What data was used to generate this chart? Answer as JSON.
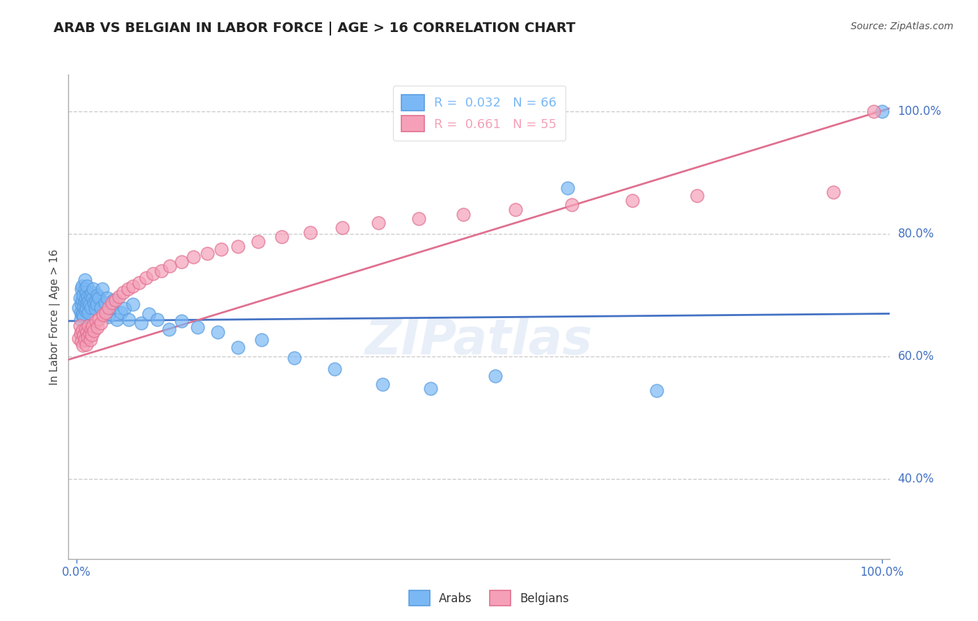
{
  "title": "ARAB VS BELGIAN IN LABOR FORCE | AGE > 16 CORRELATION CHART",
  "source_text": "Source: ZipAtlas.com",
  "ylabel": "In Labor Force | Age > 16",
  "xlim": [
    0.0,
    1.0
  ],
  "ylim_min": 0.27,
  "ylim_max": 1.06,
  "xtick_labels": [
    "0.0%",
    "100.0%"
  ],
  "ytick_labels": [
    "40.0%",
    "60.0%",
    "80.0%",
    "100.0%"
  ],
  "ytick_positions": [
    0.4,
    0.6,
    0.8,
    1.0
  ],
  "grid_color": "#cccccc",
  "background_color": "#ffffff",
  "arab_color": "#7ab8f5",
  "arab_edge_color": "#5a9de0",
  "belgian_color": "#f5a0b8",
  "belgian_edge_color": "#e07090",
  "arab_R": 0.032,
  "arab_N": 66,
  "belgian_R": 0.661,
  "belgian_N": 55,
  "arab_line_color": "#4472c4",
  "belgian_line_color": "#e07090",
  "arab_x": [
    0.003,
    0.004,
    0.005,
    0.005,
    0.006,
    0.006,
    0.007,
    0.007,
    0.007,
    0.008,
    0.008,
    0.009,
    0.009,
    0.01,
    0.01,
    0.01,
    0.011,
    0.011,
    0.012,
    0.012,
    0.013,
    0.013,
    0.014,
    0.015,
    0.015,
    0.016,
    0.017,
    0.018,
    0.019,
    0.02,
    0.021,
    0.022,
    0.023,
    0.024,
    0.025,
    0.026,
    0.028,
    0.03,
    0.032,
    0.035,
    0.038,
    0.04,
    0.043,
    0.046,
    0.05,
    0.055,
    0.06,
    0.065,
    0.07,
    0.08,
    0.09,
    0.1,
    0.115,
    0.13,
    0.15,
    0.175,
    0.2,
    0.23,
    0.27,
    0.32,
    0.38,
    0.44,
    0.52,
    0.61,
    0.72,
    1.0
  ],
  "arab_y": [
    0.68,
    0.695,
    0.672,
    0.66,
    0.685,
    0.71,
    0.668,
    0.692,
    0.715,
    0.67,
    0.7,
    0.682,
    0.665,
    0.69,
    0.71,
    0.725,
    0.675,
    0.695,
    0.68,
    0.705,
    0.715,
    0.688,
    0.698,
    0.672,
    0.69,
    0.685,
    0.7,
    0.68,
    0.705,
    0.695,
    0.71,
    0.688,
    0.678,
    0.692,
    0.685,
    0.7,
    0.695,
    0.68,
    0.71,
    0.688,
    0.695,
    0.665,
    0.68,
    0.692,
    0.66,
    0.672,
    0.678,
    0.66,
    0.685,
    0.655,
    0.67,
    0.66,
    0.645,
    0.658,
    0.648,
    0.64,
    0.615,
    0.628,
    0.598,
    0.58,
    0.555,
    0.548,
    0.568,
    0.875,
    0.545,
    1.0
  ],
  "belgian_x": [
    0.003,
    0.004,
    0.005,
    0.006,
    0.007,
    0.008,
    0.009,
    0.01,
    0.011,
    0.012,
    0.013,
    0.014,
    0.015,
    0.016,
    0.017,
    0.018,
    0.019,
    0.02,
    0.022,
    0.024,
    0.026,
    0.028,
    0.03,
    0.033,
    0.036,
    0.04,
    0.044,
    0.048,
    0.053,
    0.058,
    0.064,
    0.07,
    0.078,
    0.086,
    0.095,
    0.105,
    0.116,
    0.13,
    0.145,
    0.162,
    0.18,
    0.2,
    0.225,
    0.255,
    0.29,
    0.33,
    0.375,
    0.425,
    0.48,
    0.545,
    0.615,
    0.69,
    0.77,
    0.94,
    0.99
  ],
  "belgian_y": [
    0.63,
    0.65,
    0.638,
    0.625,
    0.642,
    0.618,
    0.635,
    0.628,
    0.645,
    0.62,
    0.64,
    0.632,
    0.65,
    0.638,
    0.628,
    0.645,
    0.635,
    0.65,
    0.642,
    0.658,
    0.648,
    0.662,
    0.655,
    0.668,
    0.672,
    0.68,
    0.688,
    0.692,
    0.698,
    0.705,
    0.71,
    0.715,
    0.72,
    0.728,
    0.735,
    0.74,
    0.748,
    0.755,
    0.762,
    0.768,
    0.775,
    0.78,
    0.788,
    0.795,
    0.802,
    0.81,
    0.818,
    0.825,
    0.832,
    0.84,
    0.848,
    0.855,
    0.862,
    0.868,
    1.0
  ]
}
